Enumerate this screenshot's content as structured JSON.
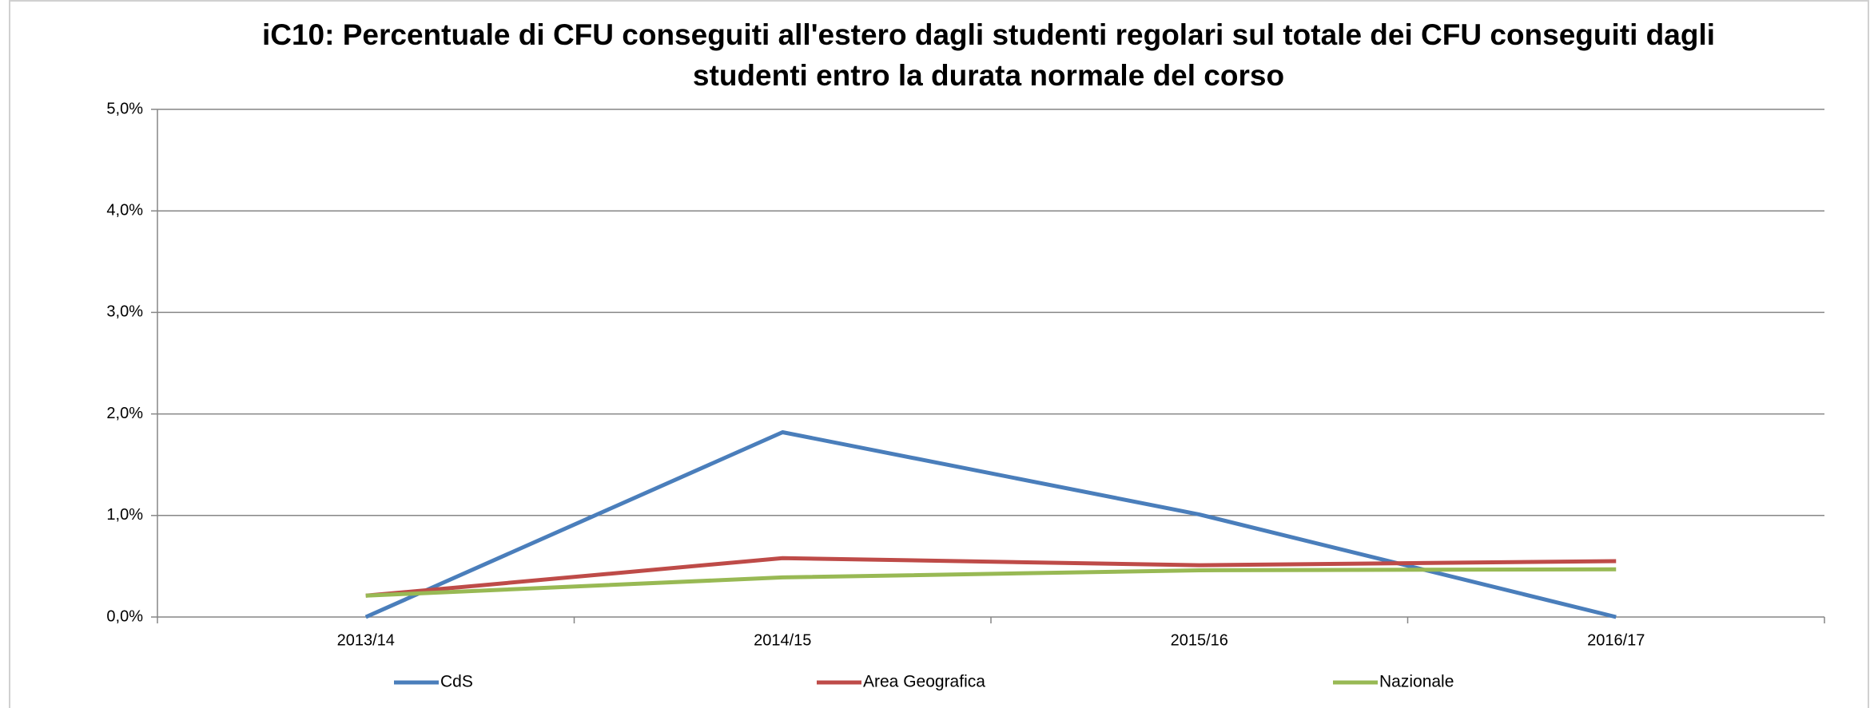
{
  "chart_data": {
    "type": "line",
    "title": [
      "iC10: Percentuale di CFU conseguiti all'estero dagli studenti regolari sul totale dei CFU conseguiti dagli",
      "studenti entro la durata normale del corso"
    ],
    "categories": [
      "2013/14",
      "2014/15",
      "2015/16",
      "2016/17"
    ],
    "series": [
      {
        "name": "CdS",
        "color": "#4a7ebb",
        "values": [
          0,
          1.82,
          1.01,
          0
        ]
      },
      {
        "name": "Area Geografica",
        "color": "#be4b48",
        "values": [
          0.21,
          0.58,
          0.51,
          0.55
        ]
      },
      {
        "name": "Nazionale",
        "color": "#98b954",
        "values": [
          0.21,
          0.39,
          0.46,
          0.47
        ]
      }
    ],
    "ylim": [
      0,
      5
    ],
    "yticks": [
      {
        "value": 0,
        "label": "0,0%"
      },
      {
        "value": 1,
        "label": "1,0%"
      },
      {
        "value": 2,
        "label": "2,0%"
      },
      {
        "value": 3,
        "label": "3,0%"
      },
      {
        "value": 4,
        "label": "4,0%"
      },
      {
        "value": 5,
        "label": "5,0%"
      }
    ],
    "grid": true,
    "legend": "bottom"
  }
}
